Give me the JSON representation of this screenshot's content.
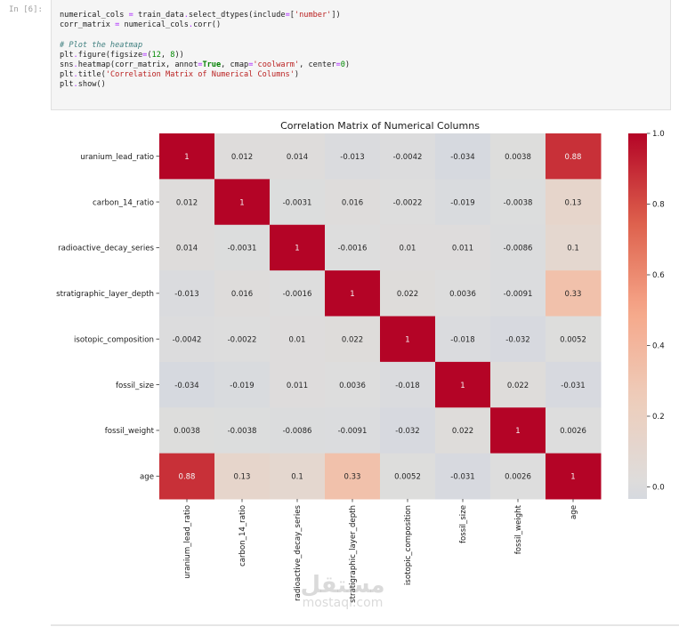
{
  "cell": {
    "prompt": "In [6]:",
    "code_lines": [
      [
        {
          "t": "numerical_cols "
        },
        {
          "t": "=",
          "c": "kw-op"
        },
        {
          "t": " train_data"
        },
        {
          "t": ".",
          "c": "kw-op"
        },
        {
          "t": "select_dtypes(include"
        },
        {
          "t": "=",
          "c": "kw-op"
        },
        {
          "t": "["
        },
        {
          "t": "'number'",
          "c": "str"
        },
        {
          "t": "])"
        }
      ],
      [
        {
          "t": "corr_matrix "
        },
        {
          "t": "=",
          "c": "kw-op"
        },
        {
          "t": " numerical_cols"
        },
        {
          "t": ".",
          "c": "kw-op"
        },
        {
          "t": "corr()"
        }
      ],
      [
        {
          "t": ""
        }
      ],
      [
        {
          "t": "# Plot the heatmap",
          "c": "cmt"
        }
      ],
      [
        {
          "t": "plt"
        },
        {
          "t": ".",
          "c": "kw-op"
        },
        {
          "t": "figure(figsize"
        },
        {
          "t": "=",
          "c": "kw-op"
        },
        {
          "t": "("
        },
        {
          "t": "12",
          "c": "num"
        },
        {
          "t": ", "
        },
        {
          "t": "8",
          "c": "num"
        },
        {
          "t": "))"
        }
      ],
      [
        {
          "t": "sns"
        },
        {
          "t": ".",
          "c": "kw-op"
        },
        {
          "t": "heatmap(corr_matrix, annot"
        },
        {
          "t": "=",
          "c": "kw-op"
        },
        {
          "t": "True",
          "c": "bool"
        },
        {
          "t": ", cmap"
        },
        {
          "t": "=",
          "c": "kw-op"
        },
        {
          "t": "'coolwarm'",
          "c": "str"
        },
        {
          "t": ", center"
        },
        {
          "t": "=",
          "c": "kw-op"
        },
        {
          "t": "0",
          "c": "num"
        },
        {
          "t": ")"
        }
      ],
      [
        {
          "t": "plt"
        },
        {
          "t": ".",
          "c": "kw-op"
        },
        {
          "t": "title("
        },
        {
          "t": "'Correlation Matrix of Numerical Columns'",
          "c": "str"
        },
        {
          "t": ")"
        }
      ],
      [
        {
          "t": "plt"
        },
        {
          "t": ".",
          "c": "kw-op"
        },
        {
          "t": "show()"
        }
      ]
    ]
  },
  "chart_data": {
    "type": "heatmap",
    "title": "Correlation Matrix of Numerical Columns",
    "colormap": "coolwarm",
    "center": 0,
    "x_labels": [
      "uranium_lead_ratio",
      "carbon_14_ratio",
      "radioactive_decay_series",
      "stratigraphic_layer_depth",
      "isotopic_composition",
      "fossil_size",
      "fossil_weight",
      "age"
    ],
    "y_labels": [
      "uranium_lead_ratio",
      "carbon_14_ratio",
      "radioactive_decay_series",
      "stratigraphic_layer_depth",
      "isotopic_composition",
      "fossil_size",
      "fossil_weight",
      "age"
    ],
    "values": [
      [
        1,
        0.012,
        0.014,
        -0.013,
        -0.0042,
        -0.034,
        0.0038,
        0.88
      ],
      [
        0.012,
        1,
        -0.0031,
        0.016,
        -0.0022,
        -0.019,
        -0.0038,
        0.13
      ],
      [
        0.014,
        -0.0031,
        1,
        -0.0016,
        0.01,
        0.011,
        -0.0086,
        0.1
      ],
      [
        -0.013,
        0.016,
        -0.0016,
        1,
        0.022,
        0.0036,
        -0.0091,
        0.33
      ],
      [
        -0.0042,
        -0.0022,
        0.01,
        0.022,
        1,
        -0.018,
        -0.032,
        0.0052
      ],
      [
        -0.034,
        -0.019,
        0.011,
        0.0036,
        -0.018,
        1,
        0.022,
        -0.031
      ],
      [
        0.0038,
        -0.0038,
        -0.0086,
        -0.0091,
        -0.032,
        0.022,
        1,
        0.0026
      ],
      [
        0.88,
        0.13,
        0.1,
        0.33,
        0.0052,
        -0.031,
        0.0026,
        1
      ]
    ],
    "annotations": [
      [
        "1",
        "0.012",
        "0.014",
        "-0.013",
        "-0.0042",
        "-0.034",
        "0.0038",
        "0.88"
      ],
      [
        "0.012",
        "1",
        "-0.0031",
        "0.016",
        "-0.0022",
        "-0.019",
        "-0.0038",
        "0.13"
      ],
      [
        "0.014",
        "-0.0031",
        "1",
        "-0.0016",
        "0.01",
        "0.011",
        "-0.0086",
        "0.1"
      ],
      [
        "-0.013",
        "0.016",
        "-0.0016",
        "1",
        "0.022",
        "0.0036",
        "-0.0091",
        "0.33"
      ],
      [
        "-0.0042",
        "-0.0022",
        "0.01",
        "0.022",
        "1",
        "-0.018",
        "-0.032",
        "0.0052"
      ],
      [
        "-0.034",
        "-0.019",
        "0.011",
        "0.0036",
        "-0.018",
        "1",
        "0.022",
        "-0.031"
      ],
      [
        "0.0038",
        "-0.0038",
        "-0.0086",
        "-0.0091",
        "-0.032",
        "0.022",
        "1",
        "0.0026"
      ],
      [
        "0.88",
        "0.13",
        "0.1",
        "0.33",
        "0.0052",
        "-0.031",
        "0.0026",
        "1"
      ]
    ],
    "colorbar": {
      "range": [
        -0.034,
        1.0
      ],
      "ticks": [
        0.0,
        0.2,
        0.4,
        0.6,
        0.8,
        1.0
      ],
      "tick_labels": [
        "0.0",
        "0.2",
        "0.4",
        "0.6",
        "0.8",
        "1.0"
      ],
      "placement": "right"
    }
  },
  "watermark": {
    "arabic": "مستقل",
    "latin": "mostaql.com"
  }
}
